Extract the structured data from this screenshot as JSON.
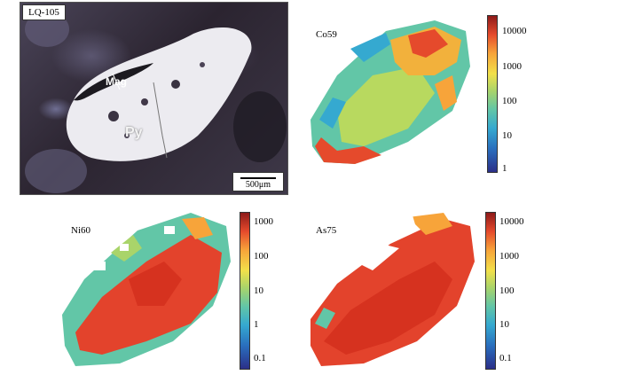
{
  "photo": {
    "sample_label": "LQ-105",
    "mineral_mag": "Mag",
    "mineral_py": "Py",
    "scale_bar": "500μm"
  },
  "maps": [
    {
      "id": "co",
      "title": "Co59",
      "ticks": [
        "10000",
        "1000",
        "100",
        "10",
        "1"
      ]
    },
    {
      "id": "ni",
      "title": "Ni60",
      "ticks": [
        "1000",
        "100",
        "10",
        "1",
        "0.1"
      ]
    },
    {
      "id": "as",
      "title": "As75",
      "ticks": [
        "10000",
        "1000",
        "100",
        "10",
        "0.1"
      ]
    }
  ],
  "colors": {
    "low": "#2b2f88",
    "mid": "#a9d46a",
    "high": "#8d1a19"
  }
}
